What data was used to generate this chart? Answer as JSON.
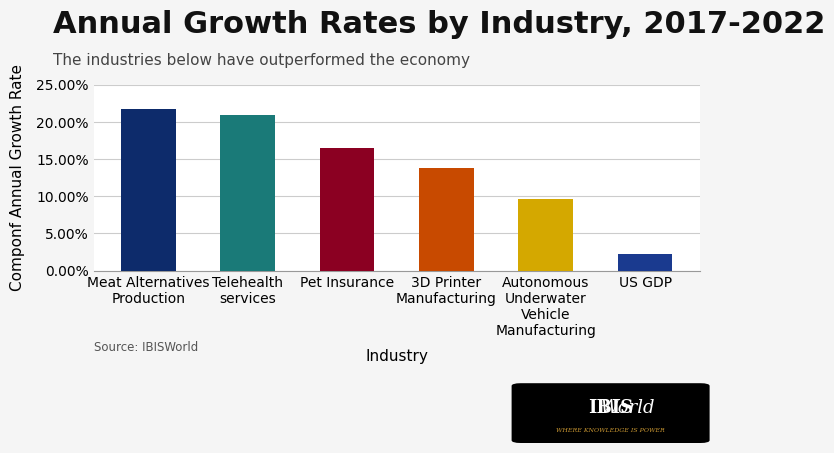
{
  "title": "Annual Growth Rates by Industry, 2017-2022",
  "subtitle": "The industries below have outperformed the economy",
  "xlabel": "Industry",
  "ylabel": "Componf Annual Growth Rate",
  "source": "Source: IBISWorld",
  "categories": [
    "Meat Alternatives\nProduction",
    "Telehealth\nservices",
    "Pet Insurance",
    "3D Printer\nManufacturing",
    "Autonomous\nUnderwater\nVehicle\nManufacturing",
    "US GDP"
  ],
  "values": [
    0.218,
    0.209,
    0.165,
    0.138,
    0.096,
    0.022
  ],
  "bar_colors": [
    "#0d2b6b",
    "#1a7a78",
    "#8b0022",
    "#c84a00",
    "#d4a800",
    "#1a3a8f"
  ],
  "ylim": [
    0,
    0.25
  ],
  "yticks": [
    0.0,
    0.05,
    0.1,
    0.15,
    0.2,
    0.25
  ],
  "ytick_labels": [
    "0.00%",
    "5.00%",
    "10.00%",
    "15.00%",
    "20.00%",
    "25.00%"
  ],
  "background_color": "#f5f5f5",
  "plot_background_color": "#ffffff",
  "title_fontsize": 22,
  "subtitle_fontsize": 11,
  "axis_label_fontsize": 11,
  "tick_fontsize": 10,
  "ibis_logo_text": "IBIS",
  "ibis_logo_italic": "World",
  "ibis_logo_sub": "WHERE KNOWLEDGE IS POWER"
}
